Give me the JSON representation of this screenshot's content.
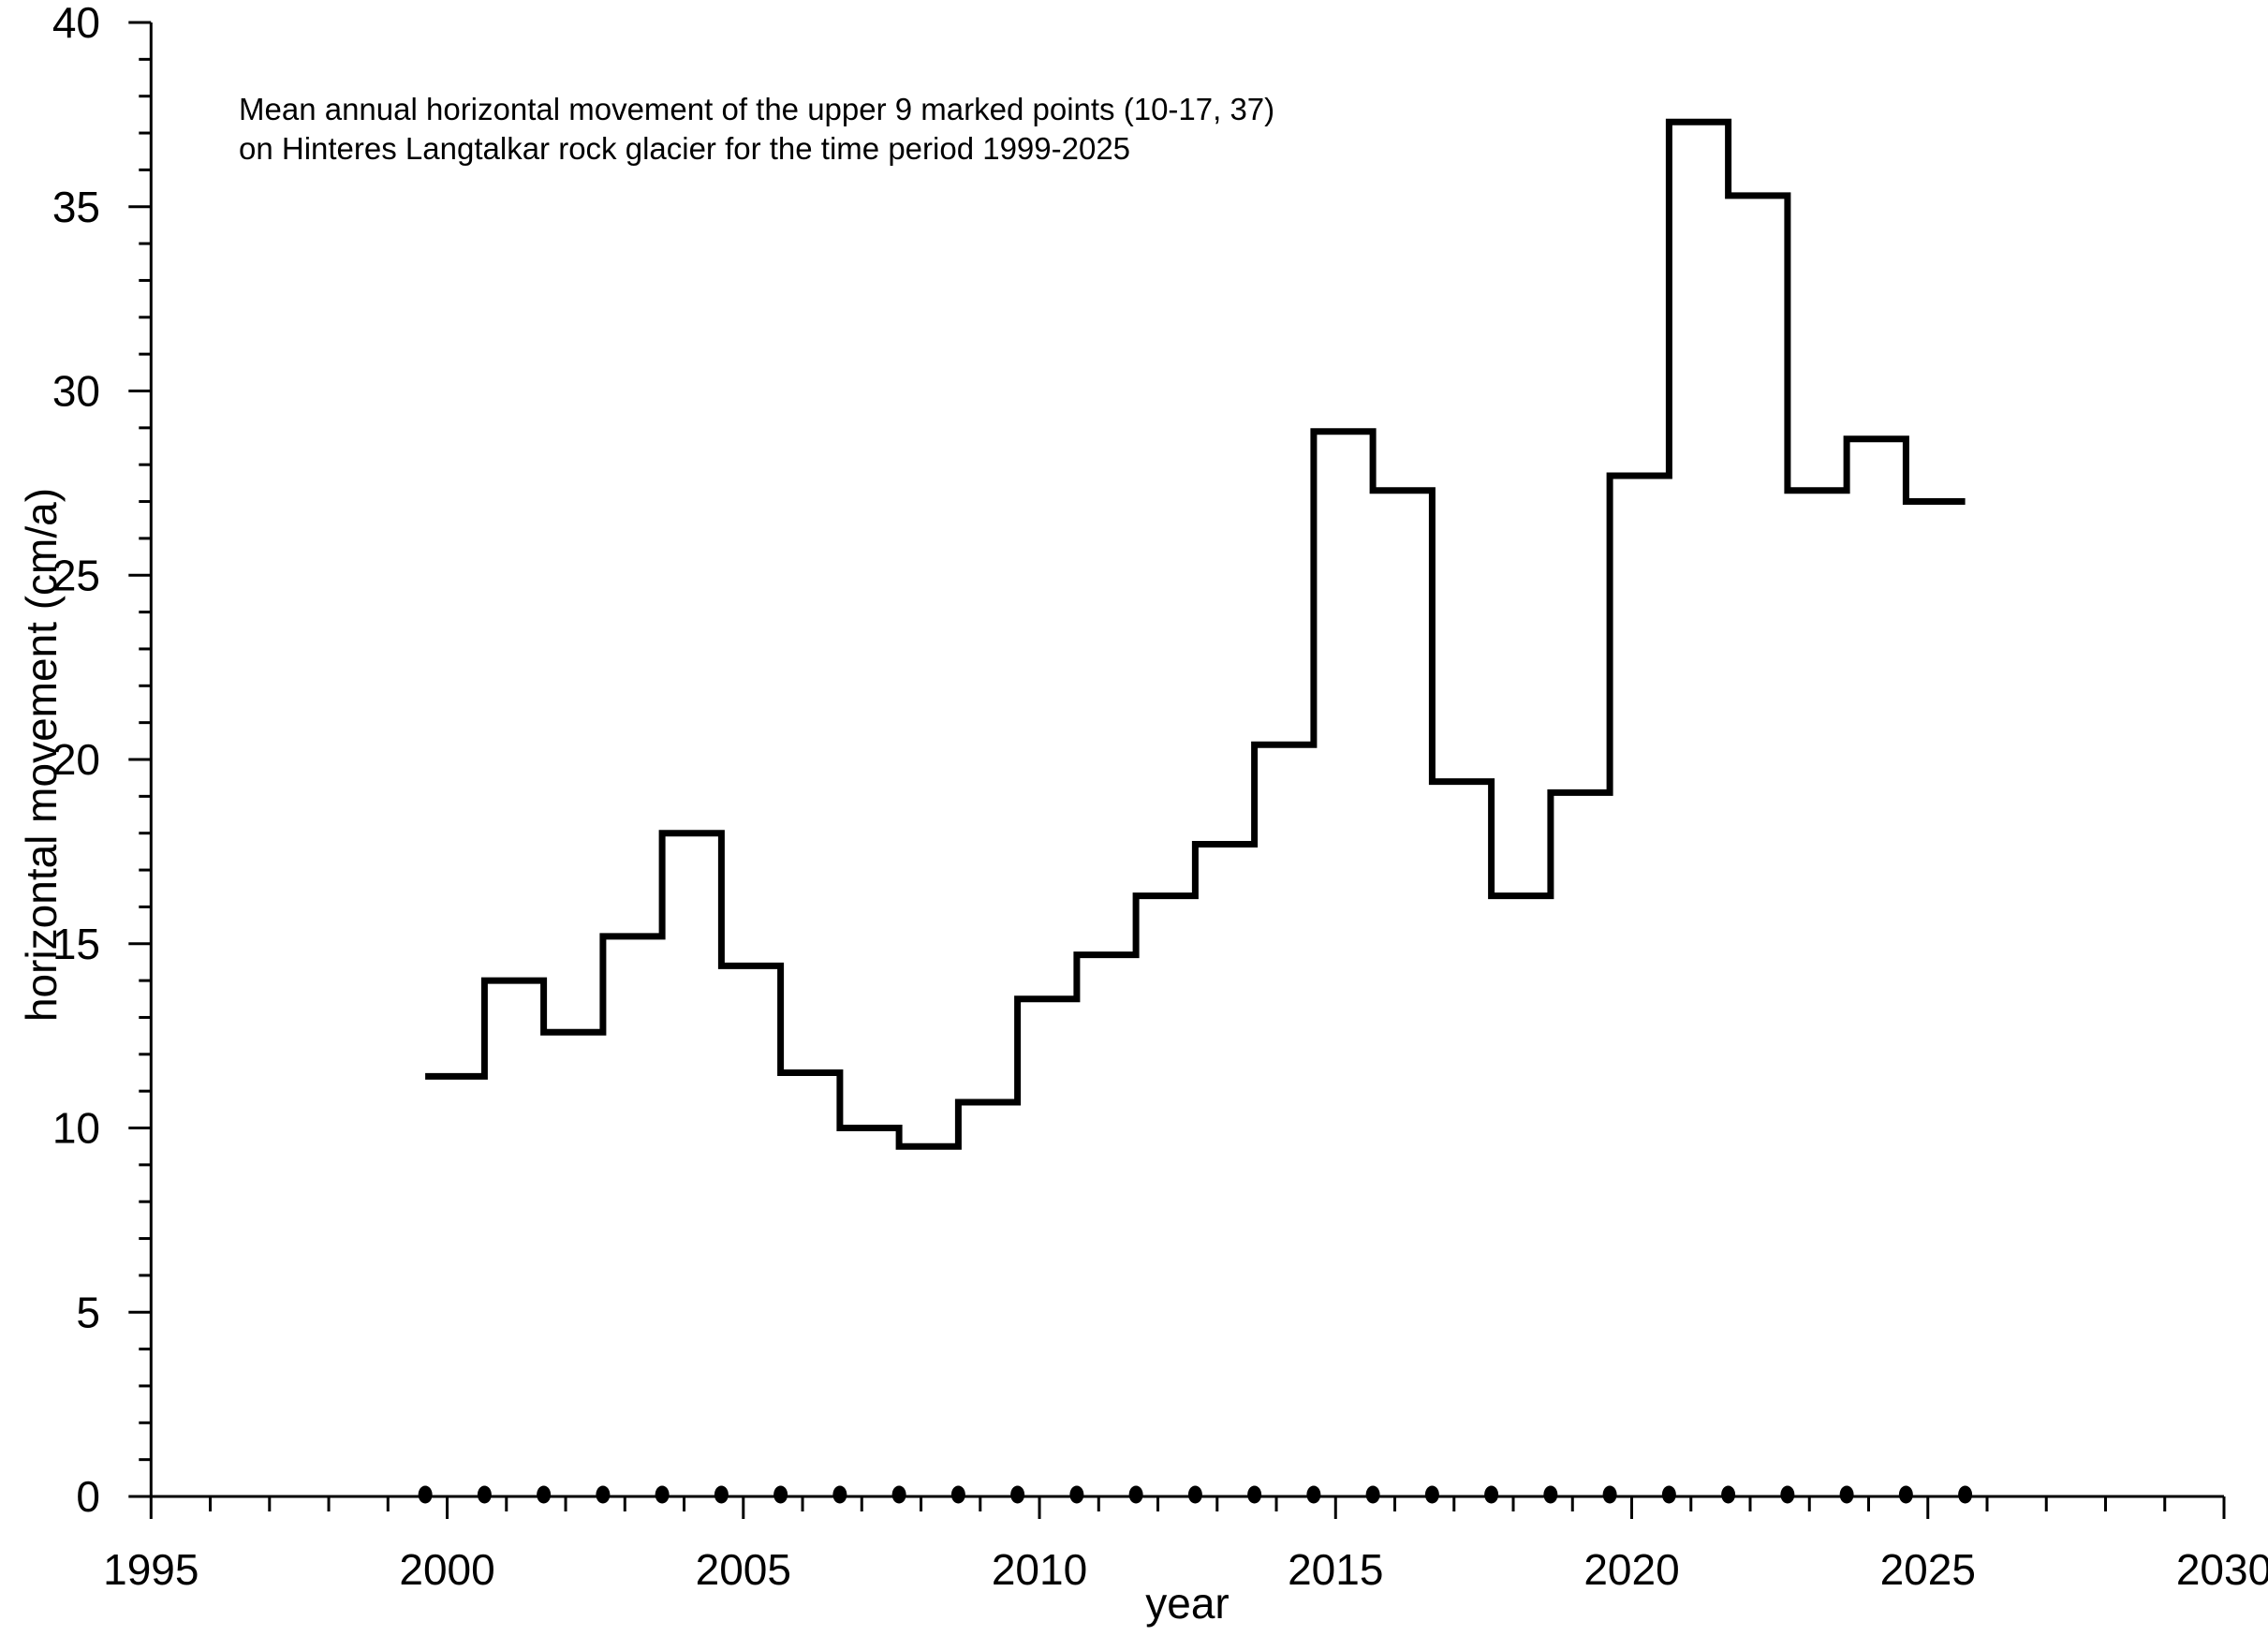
{
  "chart_data": {
    "type": "step",
    "title": "Mean annual horizontal movement of the upper 9 marked points (10-17, 37) on Hinteres Langtalkar rock glacier for the time period 1999-2025",
    "title_lines": [
      "Mean annual horizontal movement of the upper 9 marked points (10-17, 37)",
      "on Hinteres Langtalkar rock glacier for the time period 1999-2025"
    ],
    "xlabel": "year",
    "ylabel": "horizontal movement (cm/a)",
    "xlim": [
      1995,
      2030
    ],
    "ylim": [
      0,
      40
    ],
    "x_major_tick_step": 5,
    "x_minor_tick_step": 1,
    "y_major_tick_step": 5,
    "y_minor_tick_step": 1,
    "x_tick_labels": [
      "1995",
      "2000",
      "2005",
      "2010",
      "2015",
      "2020",
      "2025",
      "2030"
    ],
    "y_tick_labels": [
      "0",
      "5",
      "10",
      "15",
      "20",
      "25",
      "30",
      "35",
      "40"
    ],
    "grid": false,
    "legend": null,
    "step_boundary_offset": 0.63,
    "epoch_years": [
      1999,
      2000,
      2001,
      2002,
      2003,
      2004,
      2005,
      2006,
      2007,
      2008,
      2009,
      2010,
      2011,
      2012,
      2013,
      2014,
      2015,
      2016,
      2017,
      2018,
      2019,
      2020,
      2021,
      2022,
      2023,
      2024,
      2025
    ],
    "periods": [
      "1999/2000",
      "2000/2001",
      "2001/2002",
      "2002/2003",
      "2003/2004",
      "2004/2005",
      "2005/2006",
      "2006/2007",
      "2007/2008",
      "2008/2009",
      "2009/2010",
      "2010/2011",
      "2011/2012",
      "2012/2013",
      "2013/2014",
      "2014/2015",
      "2015/2016",
      "2016/2017",
      "2017/2018",
      "2018/2019",
      "2019/2020",
      "2020/2021",
      "2021/2022",
      "2022/2023",
      "2023/2024",
      "2024/2025"
    ],
    "values": [
      11.4,
      14.0,
      12.6,
      15.2,
      18.0,
      14.4,
      11.5,
      10.0,
      9.5,
      10.7,
      13.5,
      14.7,
      16.3,
      17.7,
      20.4,
      28.9,
      27.3,
      19.4,
      16.3,
      19.1,
      27.7,
      37.3,
      35.3,
      27.3,
      28.7,
      27.0
    ],
    "marker_value": 0,
    "colors": {
      "line": "#000000",
      "axis": "#000000",
      "text": "#000000",
      "marker": "#000000",
      "background": "#ffffff"
    }
  }
}
